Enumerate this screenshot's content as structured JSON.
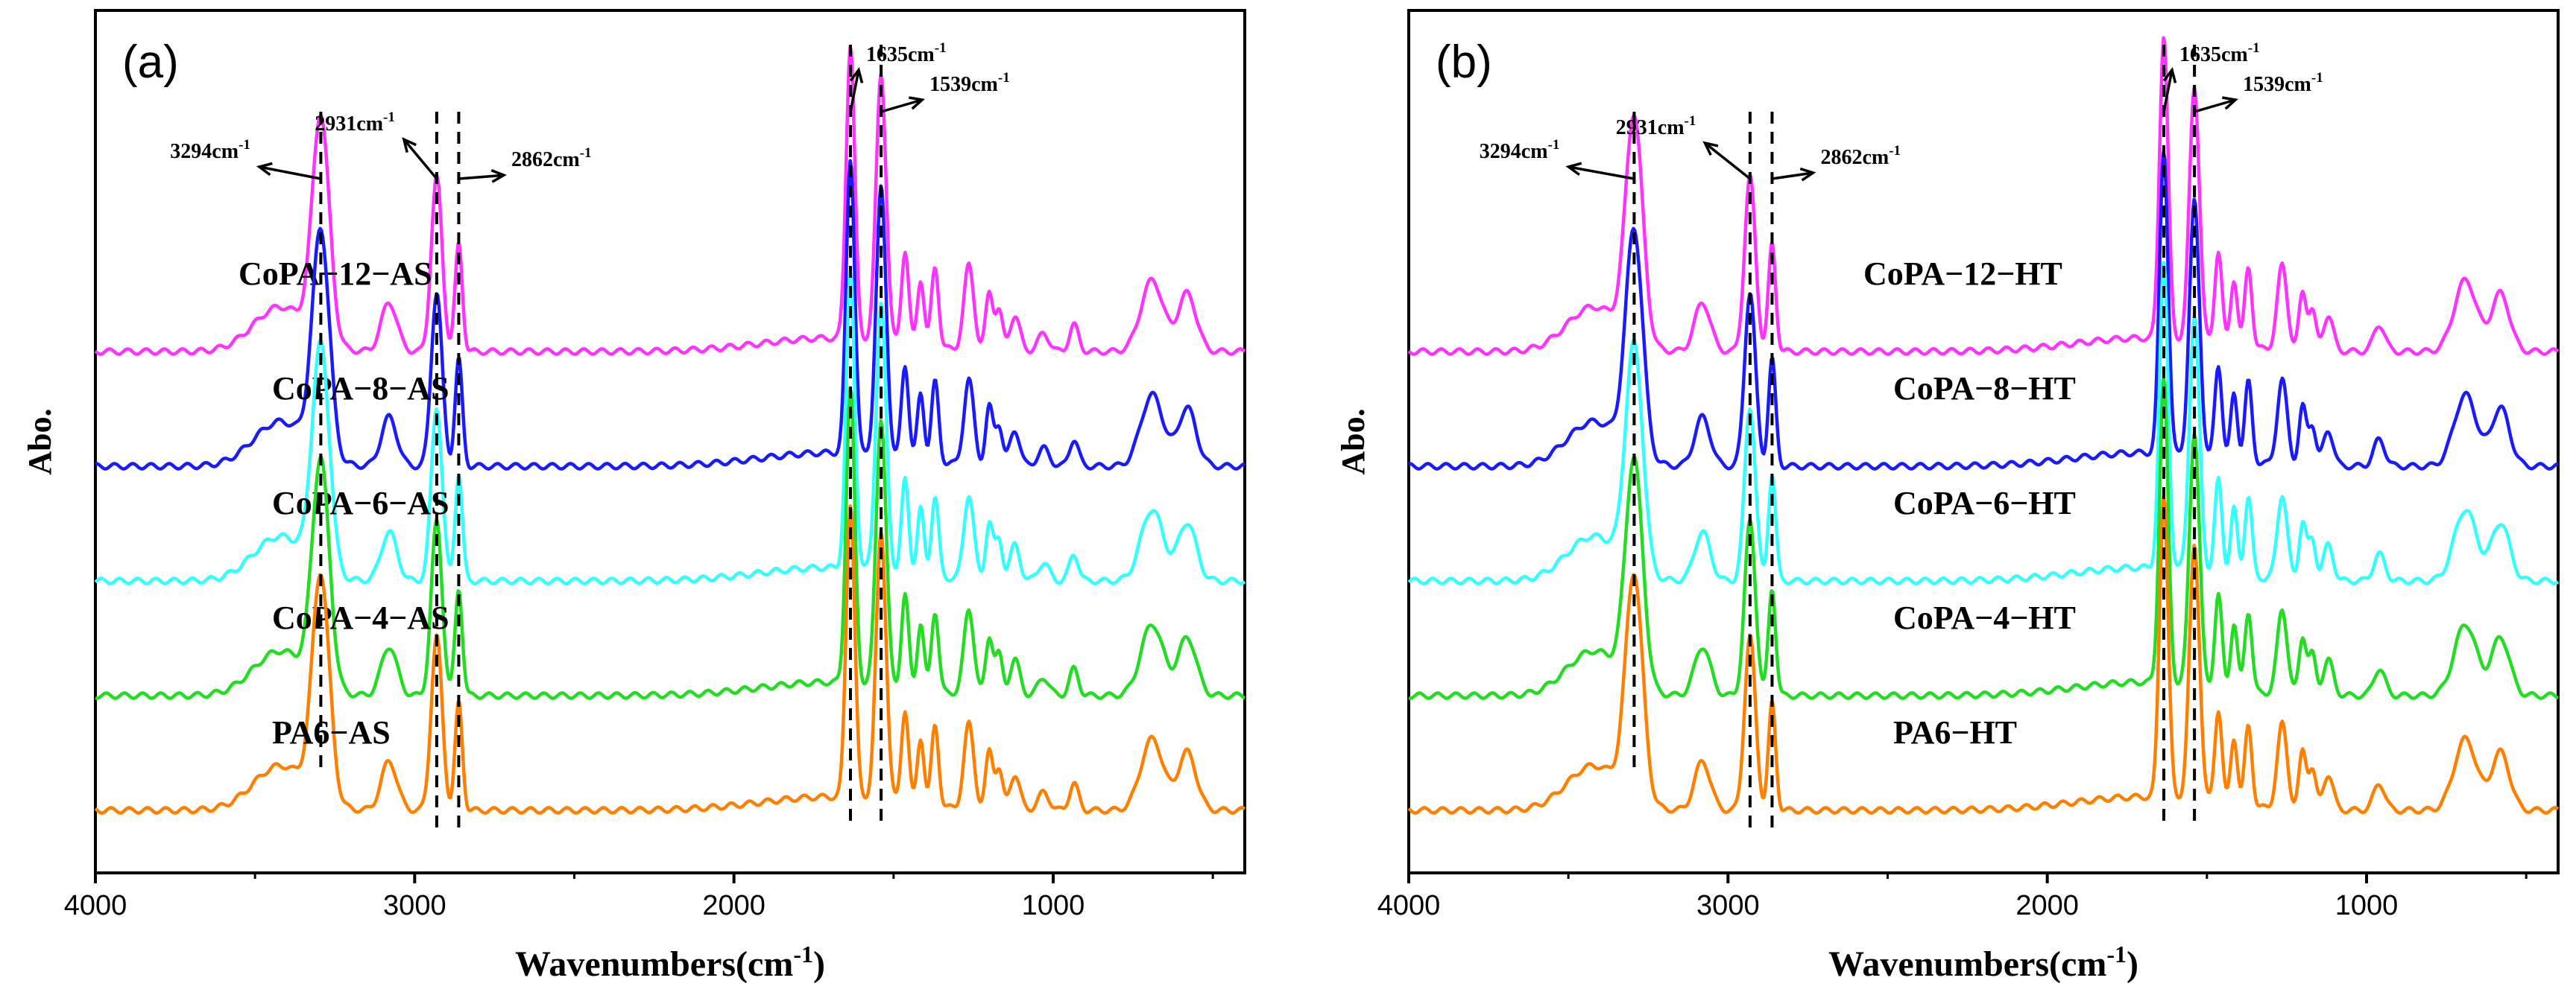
{
  "chart_data": [
    {
      "panel": "(a)",
      "type": "line",
      "xlabel": "Wavenumbers(cm",
      "xlabel_sup": "-1",
      "xlabel_tail": ")",
      "ylabel": "Abo.",
      "xlim": [
        4000,
        400
      ],
      "xticks": [
        4000,
        3000,
        2000,
        1000
      ],
      "series": [
        {
          "name": "CoPA−12−AS",
          "color": "#ff33ff",
          "offset": 4
        },
        {
          "name": "CoPA−8−AS",
          "color": "#1a1aff",
          "offset": 3
        },
        {
          "name": "CoPA−6−AS",
          "color": "#33ffff",
          "offset": 2
        },
        {
          "name": "CoPA−4−AS",
          "color": "#22dd22",
          "offset": 1
        },
        {
          "name": "PA6−AS",
          "color": "#ff8000",
          "offset": 0
        }
      ],
      "annotations": [
        {
          "value": 3294,
          "text": "3294cm",
          "sup": "-1"
        },
        {
          "value": 2931,
          "text": "2931cm",
          "sup": "-1"
        },
        {
          "value": 2862,
          "text": "2862cm",
          "sup": "-1"
        },
        {
          "value": 1635,
          "text": "1635cm",
          "sup": "-1"
        },
        {
          "value": 1539,
          "text": "1539cm",
          "sup": "-1"
        }
      ]
    },
    {
      "panel": "(b)",
      "type": "line",
      "xlabel": "Wavenumbers(cm",
      "xlabel_sup": "-1",
      "xlabel_tail": ")",
      "ylabel": "Abo.",
      "xlim": [
        4000,
        400
      ],
      "xticks": [
        4000,
        3000,
        2000,
        1000
      ],
      "series": [
        {
          "name": "CoPA−12−HT",
          "color": "#ff33ff",
          "offset": 4
        },
        {
          "name": "CoPA−8−HT",
          "color": "#1a1aff",
          "offset": 3
        },
        {
          "name": "CoPA−6−HT",
          "color": "#33ffff",
          "offset": 2
        },
        {
          "name": "CoPA−4−HT",
          "color": "#22dd22",
          "offset": 1
        },
        {
          "name": "PA6−HT",
          "color": "#ff8000",
          "offset": 0
        }
      ],
      "annotations": [
        {
          "value": 3294,
          "text": "3294cm",
          "sup": "-1"
        },
        {
          "value": 2931,
          "text": "2931cm",
          "sup": "-1"
        },
        {
          "value": 2862,
          "text": "2862cm",
          "sup": "-1"
        },
        {
          "value": 1635,
          "text": "1635cm",
          "sup": "-1"
        },
        {
          "value": 1539,
          "text": "1539cm",
          "sup": "-1"
        }
      ]
    }
  ]
}
